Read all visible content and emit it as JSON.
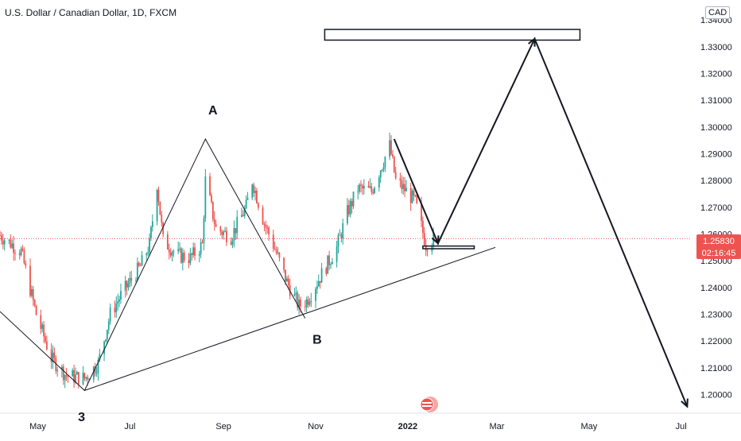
{
  "header": {
    "symbol": "U.S. Dollar / Canadian Dollar, 1D, FXCM",
    "currency": "CAD"
  },
  "price_label": {
    "value": "1.25830",
    "countdown": "02:16:45"
  },
  "colors": {
    "up": "#26a69a",
    "down": "#ef5350",
    "line": "#131722",
    "price_line": "#ef5350",
    "axis_text": "#131722"
  },
  "chart_data": {
    "type": "candlestick",
    "title": "U.S. Dollar / Canadian Dollar, 1D, FXCM",
    "ylim": [
      1.193,
      1.3475
    ],
    "xlim": [
      "2021-04-06",
      "2022-07-08"
    ],
    "y_ticks": [
      "1.20000",
      "1.21000",
      "1.22000",
      "1.23000",
      "1.24000",
      "1.25000",
      "1.26000",
      "1.27000",
      "1.28000",
      "1.29000",
      "1.30000",
      "1.31000",
      "1.32000",
      "1.33000",
      "1.34000"
    ],
    "x_ticks": [
      {
        "label": "May",
        "date": "2021-05-01"
      },
      {
        "label": "Jul",
        "date": "2021-07-01"
      },
      {
        "label": "Sep",
        "date": "2021-09-01"
      },
      {
        "label": "Nov",
        "date": "2021-11-01"
      },
      {
        "label": "2022",
        "date": "2022-01-01"
      },
      {
        "label": "Mar",
        "date": "2022-03-01"
      },
      {
        "label": "May",
        "date": "2022-05-01"
      },
      {
        "label": "Jul",
        "date": "2022-07-01"
      }
    ],
    "last_price": 1.2583,
    "candle_path": [
      {
        "date": "2021-04-06",
        "price": 1.2595
      },
      {
        "date": "2021-04-20",
        "price": 1.2535
      },
      {
        "date": "2021-04-30",
        "price": 1.23
      },
      {
        "date": "2021-05-10",
        "price": 1.2135
      },
      {
        "date": "2021-05-20",
        "price": 1.207
      },
      {
        "date": "2021-06-01",
        "price": 1.206
      },
      {
        "date": "2021-06-10",
        "price": 1.2115
      },
      {
        "date": "2021-06-18",
        "price": 1.23
      },
      {
        "date": "2021-06-25",
        "price": 1.237
      },
      {
        "date": "2021-07-08",
        "price": 1.248
      },
      {
        "date": "2021-07-14",
        "price": 1.256
      },
      {
        "date": "2021-07-19",
        "price": 1.279
      },
      {
        "date": "2021-07-23",
        "price": 1.2575
      },
      {
        "date": "2021-08-02",
        "price": 1.252
      },
      {
        "date": "2021-08-10",
        "price": 1.251
      },
      {
        "date": "2021-08-18",
        "price": 1.256
      },
      {
        "date": "2021-08-20",
        "price": 1.28
      },
      {
        "date": "2021-08-27",
        "price": 1.262
      },
      {
        "date": "2021-09-06",
        "price": 1.259
      },
      {
        "date": "2021-09-16",
        "price": 1.27
      },
      {
        "date": "2021-09-20",
        "price": 1.28
      },
      {
        "date": "2021-09-28",
        "price": 1.264
      },
      {
        "date": "2021-10-04",
        "price": 1.256
      },
      {
        "date": "2021-10-13",
        "price": 1.242
      },
      {
        "date": "2021-10-21",
        "price": 1.233
      },
      {
        "date": "2021-10-26",
        "price": 1.235
      },
      {
        "date": "2021-11-05",
        "price": 1.245
      },
      {
        "date": "2021-11-15",
        "price": 1.255
      },
      {
        "date": "2021-11-22",
        "price": 1.268
      },
      {
        "date": "2021-11-29",
        "price": 1.277
      },
      {
        "date": "2021-12-08",
        "price": 1.276
      },
      {
        "date": "2021-12-15",
        "price": 1.286
      },
      {
        "date": "2021-12-20",
        "price": 1.293
      },
      {
        "date": "2021-12-24",
        "price": 1.28
      },
      {
        "date": "2021-12-31",
        "price": 1.276
      },
      {
        "date": "2022-01-06",
        "price": 1.272
      },
      {
        "date": "2022-01-13",
        "price": 1.256
      },
      {
        "date": "2022-01-18",
        "price": 1.2583
      }
    ],
    "annotations": {
      "labels": [
        {
          "text": "A",
          "date": "2021-08-25",
          "price": 1.3047
        },
        {
          "text": "B",
          "date": "2021-11-02",
          "price": 1.219
        },
        {
          "text": "3",
          "date": "2021-05-30",
          "price": 1.19
        }
      ],
      "zigzag": [
        {
          "date": "2021-04-06",
          "price": 1.231
        },
        {
          "date": "2021-06-01",
          "price": 1.2015
        },
        {
          "date": "2021-08-20",
          "price": 1.2955
        },
        {
          "date": "2021-10-25",
          "price": 1.2285
        }
      ],
      "trendline": [
        {
          "date": "2021-06-01",
          "price": 1.2015
        },
        {
          "date": "2022-02-28",
          "price": 1.255
        }
      ],
      "projection": [
        {
          "date": "2021-12-23",
          "price": 1.2955
        },
        {
          "date": "2022-01-21",
          "price": 1.2565
        },
        {
          "date": "2022-03-26",
          "price": 1.333
        },
        {
          "date": "2022-07-05",
          "price": 1.1955
        }
      ],
      "target_zone": {
        "from": "2021-11-07",
        "to": "2022-04-25",
        "top": 1.3365,
        "bottom": 1.3325
      },
      "support_zone": {
        "from": "2022-01-11",
        "to": "2022-02-14",
        "top": 1.2555,
        "bottom": 1.2545
      }
    }
  }
}
